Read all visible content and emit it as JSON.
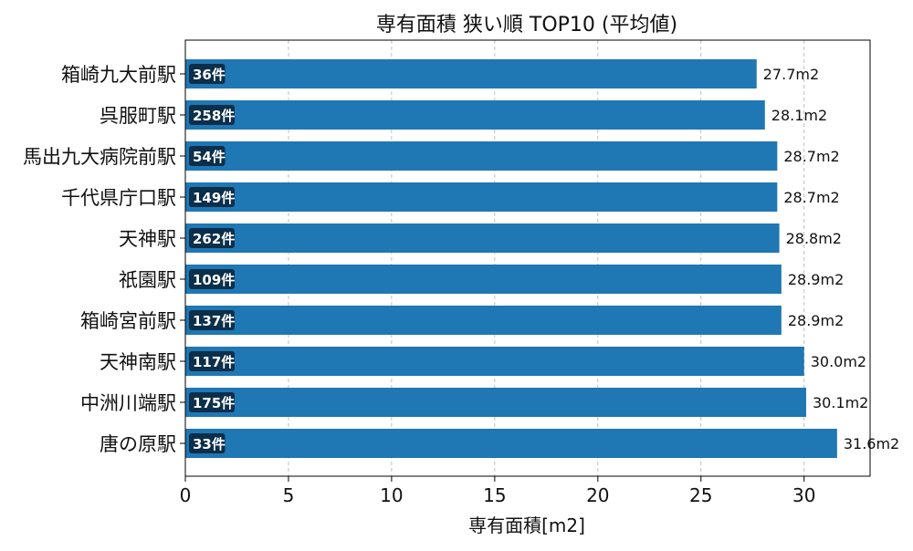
{
  "chart_data": {
    "type": "bar",
    "orientation": "horizontal",
    "title": "専有面積 狭い順 TOP10 (平均値)",
    "xlabel": "専有面積[m2]",
    "ylabel": "",
    "xlim": [
      0,
      33.2
    ],
    "xticks": [
      0,
      5,
      10,
      15,
      20,
      25,
      30
    ],
    "grid": {
      "x": true,
      "y": false,
      "style": "dashed"
    },
    "bar_color": "#1f77b4",
    "count_badge_color": "#0b2f4a",
    "value_suffix": "m2",
    "categories": [
      "箱崎九大前駅",
      "呉服町駅",
      "馬出九大病院前駅",
      "千代県庁口駅",
      "天神駅",
      "祇園駅",
      "箱崎宮前駅",
      "天神南駅",
      "中洲川端駅",
      "唐の原駅"
    ],
    "values": [
      27.7,
      28.1,
      28.7,
      28.7,
      28.8,
      28.9,
      28.9,
      30.0,
      30.1,
      31.6
    ],
    "value_labels": [
      "27.7m2",
      "28.1m2",
      "28.7m2",
      "28.7m2",
      "28.8m2",
      "28.9m2",
      "28.9m2",
      "30.0m2",
      "30.1m2",
      "31.6m2"
    ],
    "counts": [
      "36件",
      "258件",
      "54件",
      "149件",
      "262件",
      "109件",
      "137件",
      "117件",
      "175件",
      "33件"
    ]
  }
}
